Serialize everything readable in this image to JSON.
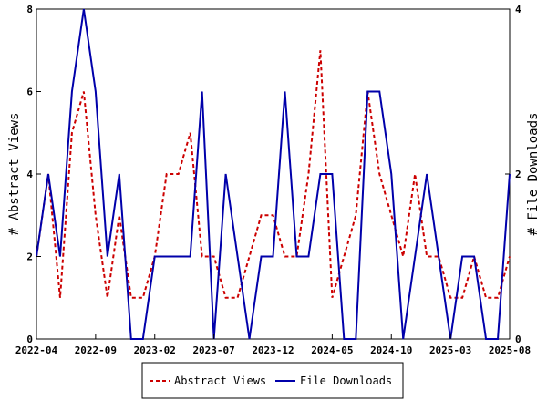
{
  "chart_data": {
    "type": "line",
    "title": "",
    "x": [
      "2022-04",
      "2022-05",
      "2022-06",
      "2022-07",
      "2022-08",
      "2022-09",
      "2022-10",
      "2022-11",
      "2022-12",
      "2023-01",
      "2023-02",
      "2023-03",
      "2023-04",
      "2023-05",
      "2023-06",
      "2023-07",
      "2023-08",
      "2023-09",
      "2023-10",
      "2023-11",
      "2023-12",
      "2024-01",
      "2024-02",
      "2024-03",
      "2024-04",
      "2024-05",
      "2024-06",
      "2024-07",
      "2024-08",
      "2024-09",
      "2024-10",
      "2024-11",
      "2024-12",
      "2025-01",
      "2025-02",
      "2025-03",
      "2025-04",
      "2025-05",
      "2025-06",
      "2025-07",
      "2025-08"
    ],
    "x_ticks": [
      "2022-04",
      "2022-09",
      "2023-02",
      "2023-07",
      "2023-12",
      "2024-05",
      "2024-10",
      "2025-03",
      "2025-08"
    ],
    "ylabel_left": "# Abstract Views",
    "ylabel_right": "# File Downloads",
    "ylim_left": [
      0,
      8
    ],
    "ylim_right": [
      0,
      4
    ],
    "yticks_left": [
      "0",
      "2",
      "4",
      "6",
      "8"
    ],
    "yticks_right": [
      "0",
      "2",
      "4"
    ],
    "grid": false,
    "legend_position": "bottom",
    "series": [
      {
        "name": "Abstract Views",
        "axis": "left",
        "color": "#cc0000",
        "style": "dashed",
        "values": [
          2,
          4,
          1,
          5,
          6,
          3,
          1,
          3,
          1,
          1,
          2,
          4,
          4,
          5,
          2,
          2,
          1,
          1,
          2,
          3,
          3,
          2,
          2,
          4,
          7,
          1,
          2,
          3,
          6,
          4,
          3,
          2,
          4,
          2,
          2,
          1,
          1,
          2,
          1,
          1,
          2
        ]
      },
      {
        "name": "File Downloads",
        "axis": "right",
        "color": "#0000aa",
        "style": "solid",
        "values": [
          1,
          2,
          1,
          3,
          4,
          3,
          1,
          2,
          0,
          0,
          1,
          1,
          1,
          1,
          3,
          0,
          2,
          1,
          0,
          1,
          1,
          3,
          1,
          1,
          2,
          2,
          0,
          0,
          3,
          3,
          2,
          0,
          1,
          2,
          1,
          0,
          1,
          1,
          0,
          0,
          2
        ]
      }
    ]
  }
}
